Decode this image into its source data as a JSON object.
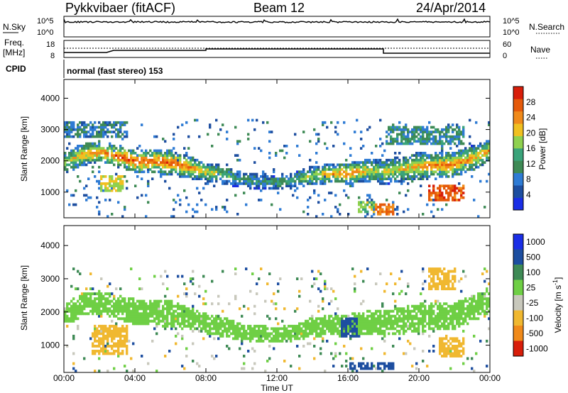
{
  "header": {
    "station": "Pykkvibaer (fitACF)",
    "beam": "Beam 12",
    "date": "24/Apr/2014"
  },
  "strips": {
    "nsky_label": "N.Sky",
    "nsky_ticks": [
      "10^5",
      "10^0"
    ],
    "nsearch_ticks": [
      "10^5",
      "10^0"
    ],
    "nsearch_label": "N.Search",
    "freq_label": "Freq.",
    "freq_unit": "[MHz]",
    "freq_ticks": [
      "18",
      "8"
    ],
    "nave_ticks": [
      "60",
      "0"
    ],
    "nave_label": "Nave",
    "cpid_label": "CPID",
    "cpid_text": "normal (fast stereo) 153"
  },
  "x_axis": {
    "label": "Time UT",
    "ticks": [
      "00:00",
      "04:00",
      "08:00",
      "12:00",
      "16:00",
      "20:00",
      "00:00"
    ]
  },
  "colors": {
    "power": [
      "#1a2ee6",
      "#1d4ea0",
      "#2e7bd4",
      "#3e8a55",
      "#3aa37a",
      "#8fd14f",
      "#f0c020",
      "#f08a1a",
      "#e55a0a",
      "#d81e0a"
    ],
    "velocity": [
      "#1a2ee6",
      "#1d4ea0",
      "#3e8a55",
      "#6fcf45",
      "#c8c8bc",
      "#f0b830",
      "#f08a1a",
      "#d81e0a"
    ]
  },
  "chart_data": [
    {
      "type": "heatmap",
      "title": "",
      "xlabel": "",
      "ylabel": "Slant Range [km]",
      "y_ticks": [
        "1000",
        "2000",
        "3000",
        "4000"
      ],
      "ylim": [
        180,
        4600
      ],
      "xlim_hours": [
        0,
        24
      ],
      "colorbar": {
        "label": "Power [dB]",
        "ticks": [
          "4",
          "8",
          "12",
          "16",
          "20",
          "24",
          "28"
        ],
        "range": [
          0,
          30
        ]
      },
      "bands": [
        {
          "x": [
            0,
            1,
            2,
            3,
            4,
            5,
            6,
            7,
            8,
            9,
            10,
            11,
            12,
            13,
            14,
            15,
            16,
            17,
            18,
            19,
            20,
            21,
            22,
            23,
            24
          ],
          "center_km": [
            1900,
            2150,
            2250,
            2100,
            1950,
            1950,
            1900,
            1750,
            1600,
            1500,
            1350,
            1300,
            1250,
            1350,
            1500,
            1550,
            1550,
            1650,
            1600,
            1700,
            1800,
            1800,
            1850,
            2050,
            2300
          ],
          "halfwidth_km": [
            350,
            350,
            350,
            350,
            400,
            400,
            400,
            350,
            300,
            300,
            250,
            250,
            250,
            250,
            300,
            300,
            350,
            350,
            400,
            400,
            450,
            400,
            400,
            400,
            350
          ],
          "peak_db": [
            18,
            22,
            24,
            26,
            26,
            25,
            26,
            24,
            20,
            16,
            12,
            12,
            12,
            14,
            18,
            22,
            24,
            20,
            18,
            20,
            22,
            24,
            24,
            22,
            22
          ]
        }
      ],
      "patches": [
        {
          "t": [
            2,
            3.3
          ],
          "r": [
            950,
            1500
          ],
          "db": 18
        },
        {
          "t": [
            16.5,
            17.5
          ],
          "r": [
            300,
            700
          ],
          "db": 16
        },
        {
          "t": [
            17.5,
            18.5
          ],
          "r": [
            250,
            600
          ],
          "db": 24
        },
        {
          "t": [
            0,
            3.5
          ],
          "r": [
            2700,
            3200
          ],
          "db": 8
        },
        {
          "t": [
            18,
            22.5
          ],
          "r": [
            2500,
            3100
          ],
          "db": 10
        },
        {
          "t": [
            20.5,
            22.5
          ],
          "r": [
            700,
            1200
          ],
          "db": 26
        }
      ]
    },
    {
      "type": "heatmap",
      "title": "",
      "xlabel": "Time UT",
      "ylabel": "Slant Range [km]",
      "y_ticks": [
        "1000",
        "2000",
        "3000",
        "4000"
      ],
      "ylim": [
        180,
        4600
      ],
      "xlim_hours": [
        0,
        24
      ],
      "colorbar": {
        "label": "Velocity [m s^-1]",
        "ticks": [
          "1000",
          "500",
          "100",
          "25",
          "-25",
          "-100",
          "-500",
          "-1000"
        ],
        "range": [
          -1000,
          1000
        ]
      },
      "bands": [
        {
          "x": [
            0,
            1,
            2,
            3,
            4,
            5,
            6,
            7,
            8,
            9,
            10,
            11,
            12,
            13,
            14,
            15,
            16,
            17,
            18,
            19,
            20,
            21,
            22,
            23,
            24
          ],
          "center_km": [
            1900,
            2150,
            2250,
            2100,
            1950,
            1950,
            1900,
            1750,
            1600,
            1500,
            1350,
            1300,
            1250,
            1350,
            1500,
            1550,
            1550,
            1650,
            1600,
            1700,
            1800,
            1800,
            1850,
            2050,
            2300
          ],
          "halfwidth_km": [
            350,
            350,
            350,
            350,
            400,
            400,
            400,
            350,
            300,
            300,
            250,
            250,
            250,
            250,
            300,
            300,
            350,
            350,
            400,
            400,
            450,
            400,
            400,
            400,
            350
          ],
          "velocity": [
            0,
            0,
            0,
            0,
            0,
            0,
            0,
            0,
            0,
            0,
            0,
            0,
            0,
            0,
            0,
            0,
            0,
            0,
            0,
            0,
            0,
            0,
            0,
            0,
            0
          ]
        }
      ],
      "patches": [
        {
          "t": [
            1.5,
            3.5
          ],
          "r": [
            700,
            1600
          ],
          "v": -300
        },
        {
          "t": [
            15.5,
            16.5
          ],
          "r": [
            1200,
            1800
          ],
          "v": 150
        },
        {
          "t": [
            16,
            18.5
          ],
          "r": [
            250,
            450
          ],
          "v": 200
        },
        {
          "t": [
            21,
            22.5
          ],
          "r": [
            600,
            1200
          ],
          "v": -400
        },
        {
          "t": [
            20.5,
            22
          ],
          "r": [
            2600,
            3300
          ],
          "v": -200
        }
      ]
    }
  ]
}
